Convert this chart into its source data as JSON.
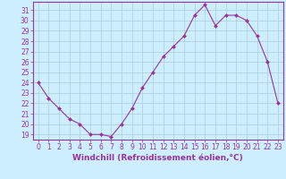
{
  "x": [
    0,
    1,
    2,
    3,
    4,
    5,
    6,
    7,
    8,
    9,
    10,
    11,
    12,
    13,
    14,
    15,
    16,
    17,
    18,
    19,
    20,
    21,
    22,
    23
  ],
  "y": [
    24,
    22.5,
    21.5,
    20.5,
    20,
    19,
    19,
    18.8,
    20,
    21.5,
    23.5,
    25,
    26.5,
    27.5,
    28.5,
    30.5,
    31.5,
    29.5,
    30.5,
    30.5,
    30,
    28.5,
    26,
    22
  ],
  "line_color": "#993399",
  "marker": "D",
  "marker_size": 2.0,
  "background_color": "#cceeff",
  "grid_color": "#aaccdd",
  "ylabel_ticks": [
    19,
    20,
    21,
    22,
    23,
    24,
    25,
    26,
    27,
    28,
    29,
    30,
    31
  ],
  "ylim": [
    18.5,
    31.8
  ],
  "xlim": [
    -0.5,
    23.5
  ],
  "xlabel": "Windchill (Refroidissement éolien,°C)",
  "tick_fontsize": 5.5,
  "label_fontsize": 6.5
}
